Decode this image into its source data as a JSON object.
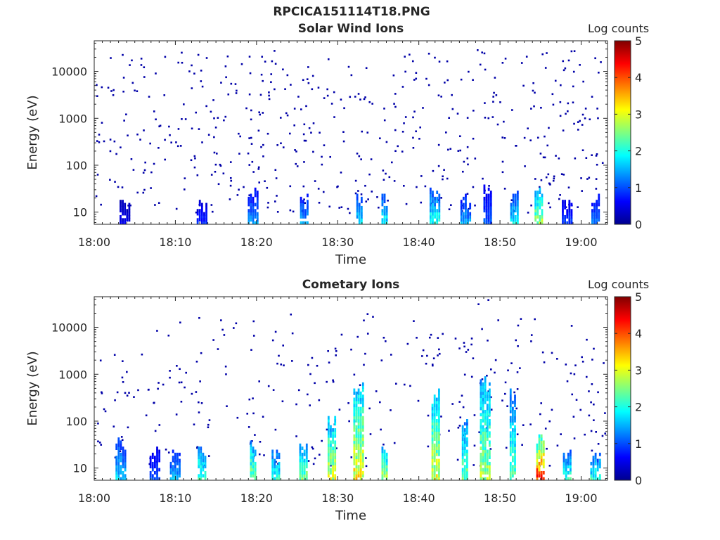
{
  "figure": {
    "title": "RPCICA151114T18.PNG"
  },
  "colorbar": {
    "label": "Log counts",
    "min": 0,
    "max": 5,
    "ticks": [
      "0",
      "1",
      "2",
      "3",
      "4",
      "5"
    ],
    "colormap": "jet"
  },
  "chart_data": [
    {
      "type": "heatmap",
      "title": "Solar Wind Ions",
      "xlabel": "Time",
      "ylabel": "Energy (eV)",
      "y_scale": "log",
      "ylim": [
        5.5,
        45000
      ],
      "xlim": [
        "18:00",
        "19:03"
      ],
      "x_ticks": [
        "18:00",
        "18:10",
        "18:20",
        "18:30",
        "18:40",
        "18:50",
        "19:00"
      ],
      "y_ticks": [
        "10",
        "100",
        "1000",
        "10000"
      ],
      "colorbar_label": "Log counts",
      "bursts": [
        {
          "time_min": 3.8,
          "max_energy_eV": 15,
          "log_counts": 0.5
        },
        {
          "time_min": 13.3,
          "max_energy_eV": 15,
          "log_counts": 0.8
        },
        {
          "time_min": 19.6,
          "max_energy_eV": 25,
          "log_counts": 1.3
        },
        {
          "time_min": 25.9,
          "max_energy_eV": 22,
          "log_counts": 1.4
        },
        {
          "time_min": 32.7,
          "max_energy_eV": 20,
          "log_counts": 1.7
        },
        {
          "time_min": 35.8,
          "max_energy_eV": 20,
          "log_counts": 1.8
        },
        {
          "time_min": 42.0,
          "max_energy_eV": 30,
          "log_counts": 1.9
        },
        {
          "time_min": 45.8,
          "max_energy_eV": 20,
          "log_counts": 1.4
        },
        {
          "time_min": 48.5,
          "max_energy_eV": 30,
          "log_counts": 1.0
        },
        {
          "time_min": 51.8,
          "max_energy_eV": 28,
          "log_counts": 1.7
        },
        {
          "time_min": 54.8,
          "max_energy_eV": 35,
          "log_counts": 2.6
        },
        {
          "time_min": 58.3,
          "max_energy_eV": 15,
          "log_counts": 0.9
        },
        {
          "time_min": 61.8,
          "max_energy_eV": 20,
          "log_counts": 1.2
        }
      ],
      "background": "sparse single counts (log counts ~0.2) scattered from 10 eV to 30000 eV"
    },
    {
      "type": "heatmap",
      "title": "Cometary Ions",
      "xlabel": "Time",
      "ylabel": "Energy (eV)",
      "y_scale": "log",
      "ylim": [
        5.5,
        45000
      ],
      "xlim": [
        "18:00",
        "19:03"
      ],
      "x_ticks": [
        "18:00",
        "18:10",
        "18:20",
        "18:30",
        "18:40",
        "18:50",
        "19:00"
      ],
      "y_ticks": [
        "10",
        "100",
        "1000",
        "10000"
      ],
      "colorbar_label": "Log counts",
      "bursts": [
        {
          "time_min": 3.3,
          "max_energy_eV": 35,
          "log_counts": 1.6
        },
        {
          "time_min": 7.5,
          "max_energy_eV": 25,
          "log_counts": 1.0
        },
        {
          "time_min": 10.0,
          "max_energy_eV": 20,
          "log_counts": 1.5
        },
        {
          "time_min": 13.3,
          "max_energy_eV": 25,
          "log_counts": 2.2
        },
        {
          "time_min": 19.6,
          "max_energy_eV": 30,
          "log_counts": 2.5
        },
        {
          "time_min": 22.4,
          "max_energy_eV": 25,
          "log_counts": 2.0
        },
        {
          "time_min": 25.8,
          "max_energy_eV": 30,
          "log_counts": 2.4
        },
        {
          "time_min": 29.3,
          "max_energy_eV": 100,
          "log_counts": 2.8
        },
        {
          "time_min": 32.6,
          "max_energy_eV": 500,
          "log_counts": 3.0
        },
        {
          "time_min": 35.8,
          "max_energy_eV": 30,
          "log_counts": 2.6
        },
        {
          "time_min": 42.1,
          "max_energy_eV": 400,
          "log_counts": 2.9
        },
        {
          "time_min": 45.7,
          "max_energy_eV": 100,
          "log_counts": 2.3
        },
        {
          "time_min": 48.2,
          "max_energy_eV": 700,
          "log_counts": 2.6
        },
        {
          "time_min": 51.6,
          "max_energy_eV": 400,
          "log_counts": 2.2
        },
        {
          "time_min": 55.0,
          "max_energy_eV": 45,
          "log_counts": 4.0
        },
        {
          "time_min": 58.3,
          "max_energy_eV": 25,
          "log_counts": 2.0
        },
        {
          "time_min": 61.8,
          "max_energy_eV": 20,
          "log_counts": 2.0
        }
      ],
      "background": "sparse single counts (log counts ~0.2) scattered from 10 eV to 20000 eV"
    }
  ]
}
